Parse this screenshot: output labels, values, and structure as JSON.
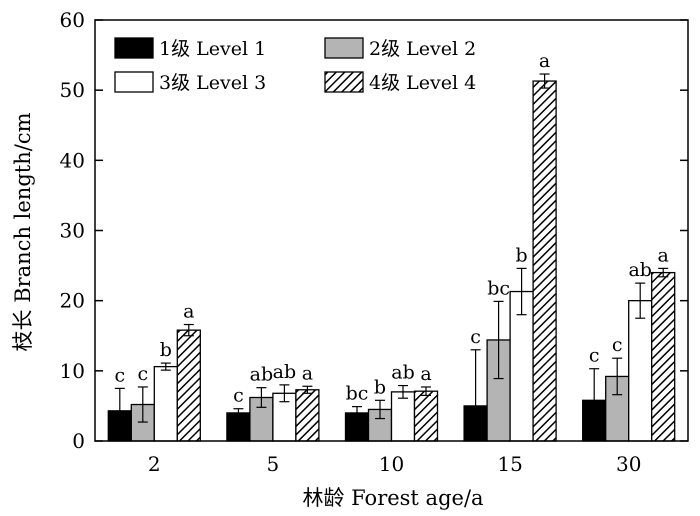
{
  "chart_data": {
    "type": "bar",
    "title": "",
    "xlabel": "林龄 Forest age/a",
    "ylabel": "枝长 Branch length/cm",
    "ylim": [
      0,
      60
    ],
    "yticks": [
      0,
      10,
      20,
      30,
      40,
      50,
      60
    ],
    "categories": [
      "2",
      "5",
      "10",
      "15",
      "30"
    ],
    "legend": {
      "placement": "top-left",
      "columns": 2
    },
    "series": [
      {
        "name": "1级 Level 1",
        "fill": "solid-black",
        "values": [
          4.3,
          4.0,
          4.0,
          5.0,
          5.8
        ],
        "error": [
          3.2,
          0.6,
          0.9,
          8.0,
          4.5
        ],
        "labels": [
          "c",
          "c",
          "bc",
          "c",
          "c"
        ]
      },
      {
        "name": "2级 Level 2",
        "fill": "solid-gray",
        "values": [
          5.2,
          6.2,
          4.5,
          14.4,
          9.2
        ],
        "error": [
          2.5,
          1.4,
          1.3,
          5.5,
          2.6
        ],
        "labels": [
          "c",
          "ab",
          "b",
          "bc",
          "c"
        ]
      },
      {
        "name": "3级 Level 3",
        "fill": "white",
        "values": [
          10.6,
          6.8,
          7.0,
          21.3,
          20.0
        ],
        "error": [
          0.5,
          1.2,
          0.9,
          3.3,
          2.5
        ],
        "labels": [
          "b",
          "ab",
          "ab",
          "b",
          "ab"
        ]
      },
      {
        "name": "4级 Level 4",
        "fill": "hatched",
        "values": [
          15.8,
          7.3,
          7.1,
          51.3,
          24.0
        ],
        "error": [
          0.8,
          0.5,
          0.6,
          1.0,
          0.6
        ],
        "labels": [
          "a",
          "a",
          "a",
          "a",
          "a"
        ]
      }
    ]
  }
}
